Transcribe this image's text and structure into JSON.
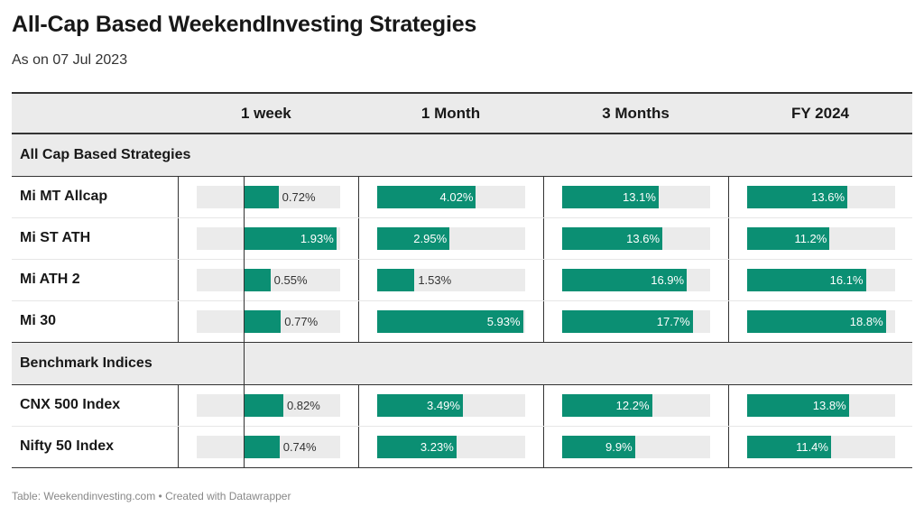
{
  "title": "All-Cap Based WeekendInvesting Strategies",
  "subtitle": "As on 07 Jul 2023",
  "footer": "Table: Weekendinvesting.com • Created with Datawrapper",
  "colors": {
    "bar": "#0b8f73",
    "track": "#ebebeb",
    "header_bg": "#ebebeb",
    "rule": "#333333"
  },
  "columns": [
    "",
    "1 week",
    "1 Month",
    "3 Months",
    "FY 2024"
  ],
  "chart_data": {
    "type": "table",
    "title": "All-Cap Based WeekendInvesting Strategies",
    "subtitle": "As on 07 Jul 2023",
    "columns": [
      "1 week",
      "1 Month",
      "3 Months",
      "FY 2024"
    ],
    "groups": [
      {
        "name": "All Cap Based Strategies",
        "rows": [
          {
            "name": "Mi MT Allcap",
            "values": [
              0.72,
              4.02,
              13.1,
              13.6
            ],
            "labels": [
              "0.72%",
              "4.02%",
              "13.1%",
              "13.6%"
            ]
          },
          {
            "name": "Mi ST ATH",
            "values": [
              1.93,
              2.95,
              13.6,
              11.2
            ],
            "labels": [
              "1.93%",
              "2.95%",
              "13.6%",
              "11.2%"
            ]
          },
          {
            "name": "Mi ATH 2",
            "values": [
              0.55,
              1.53,
              16.9,
              16.1
            ],
            "labels": [
              "0.55%",
              "1.53%",
              "16.9%",
              "16.1%"
            ]
          },
          {
            "name": "Mi 30",
            "values": [
              0.77,
              5.93,
              17.7,
              18.8
            ],
            "labels": [
              "0.77%",
              "5.93%",
              "17.7%",
              "18.8%"
            ]
          }
        ]
      },
      {
        "name": "Benchmark Indices",
        "rows": [
          {
            "name": "CNX 500 Index",
            "values": [
              0.82,
              3.49,
              12.2,
              13.8
            ],
            "labels": [
              "0.82%",
              "3.49%",
              "12.2%",
              "13.8%"
            ]
          },
          {
            "name": "Nifty 50 Index",
            "values": [
              0.74,
              3.23,
              9.9,
              11.4
            ],
            "labels": [
              "0.74%",
              "3.23%",
              "9.9%",
              "11.4%"
            ]
          }
        ]
      }
    ],
    "column_ranges": [
      [
        -1,
        2
      ],
      [
        0,
        6
      ],
      [
        0,
        20
      ],
      [
        0,
        20
      ]
    ]
  }
}
